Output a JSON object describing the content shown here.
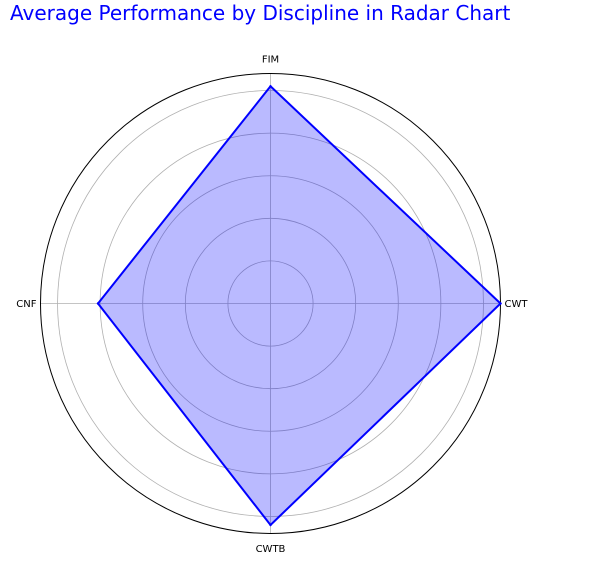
{
  "chart_data": {
    "type": "radar",
    "title": "Average Performance by Discipline in Radar Chart",
    "categories": [
      "CWT",
      "FIM",
      "CNF",
      "CWTB"
    ],
    "series": [
      {
        "values": [
          108,
          102,
          81,
          104
        ]
      }
    ],
    "rlim": [
      0,
      108
    ],
    "rticks": [
      20,
      40,
      60,
      80,
      100
    ],
    "grid": true,
    "legend": "none"
  },
  "colors": {
    "title": "#0000ff",
    "line": "#0000ff",
    "fill": "#0000ff",
    "fill_opacity": 0.27,
    "grid": "#b0b0b0",
    "frame": "#000000"
  }
}
